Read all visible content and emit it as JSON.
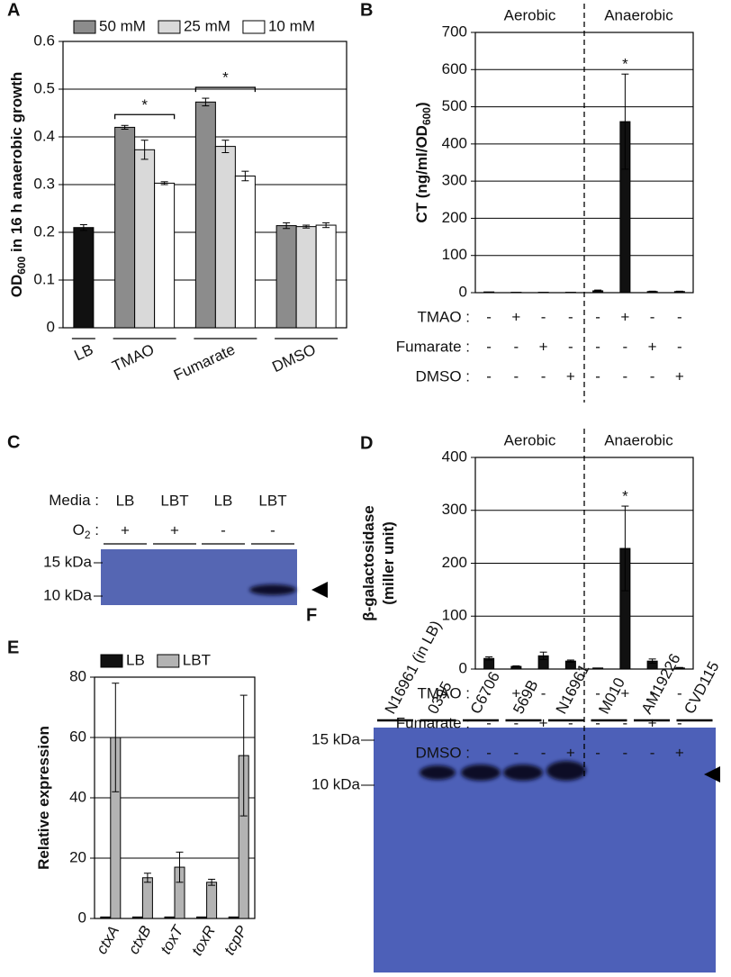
{
  "chart_data": [
    {
      "panel": "A",
      "type": "bar",
      "categories": [
        "LB",
        "TMAO",
        "Fumarate",
        "DMSO"
      ],
      "series": [
        {
          "color": "#111111",
          "values": [
            0.21,
            null,
            null,
            null
          ],
          "errors": [
            0.006,
            null,
            null,
            null
          ]
        },
        {
          "name": "50 mM",
          "color": "#8c8c8c",
          "values": [
            null,
            0.42,
            0.473,
            0.214
          ],
          "errors": [
            null,
            0.004,
            0.008,
            0.006
          ]
        },
        {
          "name": "25 mM",
          "color": "#d9d9d9",
          "values": [
            null,
            0.373,
            0.38,
            0.212
          ],
          "errors": [
            null,
            0.02,
            0.013,
            0.003
          ]
        },
        {
          "name": "10 mM",
          "color": "#ffffff",
          "values": [
            null,
            0.303,
            0.318,
            0.215
          ],
          "errors": [
            null,
            0.003,
            0.01,
            0.005
          ]
        }
      ],
      "ylabel": [
        [
          "OD",
          "600",
          " in 16 h anaerobic growth"
        ]
      ],
      "ylim": [
        0,
        0.6
      ],
      "yticks": [
        0,
        0.1,
        0.2,
        0.3,
        0.4,
        0.5,
        0.6
      ],
      "grid": true,
      "legend": "top",
      "category_lines": true,
      "annotations": [
        {
          "text": "*",
          "category": 1,
          "bracket": true
        },
        {
          "text": "*",
          "category": 2,
          "bracket": true
        }
      ]
    },
    {
      "panel": "B",
      "type": "bar",
      "categories": [
        null,
        null,
        null,
        null,
        null,
        null,
        null,
        null
      ],
      "series": [
        {
          "color": "#111111",
          "values": [
            2,
            1,
            1,
            1,
            5,
            460,
            3,
            3
          ],
          "errors": [
            0,
            0,
            0,
            0,
            2,
            128,
            1,
            1
          ]
        }
      ],
      "ylabel": [
        [
          "CT (ng/ml/OD",
          "600",
          ")"
        ]
      ],
      "ylim": [
        0,
        700
      ],
      "yticks": [
        0,
        100,
        200,
        300,
        400,
        500,
        600,
        700
      ],
      "grid": true,
      "groups": [
        "Aerobic",
        "Anaerobic"
      ],
      "conditions": [
        {
          "name": "TMAO :",
          "marks": [
            "-",
            "+",
            "-",
            "-",
            "-",
            "+",
            "-",
            "-"
          ]
        },
        {
          "name": "Fumarate :",
          "marks": [
            "-",
            "-",
            "+",
            "-",
            "-",
            "-",
            "+",
            "-"
          ]
        },
        {
          "name": "DMSO :",
          "marks": [
            "-",
            "-",
            "-",
            "+",
            "-",
            "-",
            "-",
            "+"
          ]
        }
      ],
      "annotations": [
        {
          "text": "*",
          "category": 5
        }
      ]
    },
    {
      "panel": "D",
      "type": "bar",
      "categories": [
        null,
        null,
        null,
        null,
        null,
        null,
        null,
        null
      ],
      "series": [
        {
          "color": "#111111",
          "values": [
            20,
            5,
            25,
            15,
            2,
            228,
            15,
            2
          ],
          "errors": [
            3,
            1,
            7,
            2,
            0,
            80,
            4,
            1
          ]
        }
      ],
      "ylabel": [
        [
          "β-galactosidase"
        ],
        [
          "(miller unit)"
        ]
      ],
      "ylim": [
        0,
        400
      ],
      "yticks": [
        0,
        100,
        200,
        300,
        400
      ],
      "grid": true,
      "groups": [
        "Aerobic",
        "Anaerobic"
      ],
      "conditions": [
        {
          "name": "TMAO :",
          "marks": [
            "-",
            "+",
            "-",
            "-",
            "-",
            "+",
            "-",
            "-"
          ]
        },
        {
          "name": "Fumarate :",
          "marks": [
            "-",
            "-",
            "+",
            "-",
            "-",
            "-",
            "+",
            "-"
          ]
        },
        {
          "name": "DMSO :",
          "marks": [
            "-",
            "-",
            "-",
            "+",
            "-",
            "-",
            "-",
            "+"
          ]
        }
      ],
      "annotations": [
        {
          "text": "*",
          "category": 5
        }
      ]
    },
    {
      "panel": "E",
      "type": "bar",
      "categories": [
        "ctxA",
        "ctxB",
        "toxT",
        "toxR",
        "tcpP"
      ],
      "series": [
        {
          "name": "LB",
          "color": "#111111",
          "values": [
            0.5,
            0.5,
            0.5,
            0.5,
            0.5
          ],
          "errors": [
            0,
            0,
            0,
            0,
            0
          ]
        },
        {
          "name": "LBT",
          "color": "#b3b3b3",
          "values": [
            60,
            13.5,
            17,
            12,
            54
          ],
          "errors": [
            18,
            1.5,
            5,
            1,
            20
          ]
        }
      ],
      "ylabel": [
        [
          "Relative expression"
        ]
      ],
      "ylim": [
        0,
        80
      ],
      "yticks": [
        0,
        20,
        40,
        60,
        80
      ],
      "grid": true,
      "legend": "top",
      "italic_categories": true
    }
  ],
  "blots": [
    {
      "panel": "C",
      "rows": [
        {
          "name": [
            "Media :"
          ],
          "lanes": [
            "LB",
            "LBT",
            "LB",
            "LBT"
          ]
        },
        {
          "name": [
            "O",
            "2",
            " :"
          ],
          "lanes": [
            "+",
            "+",
            "-",
            "-"
          ]
        }
      ],
      "markers": [
        "15 kDa",
        "10 kDa"
      ]
    },
    {
      "panel": "F",
      "lanes": [
        "N16961 (in LB)",
        "0395",
        "C6706",
        "569B",
        "N16961",
        "M010",
        "AM19226",
        "CVD115"
      ],
      "markers": [
        "15 kDa",
        "10 kDa"
      ]
    }
  ]
}
